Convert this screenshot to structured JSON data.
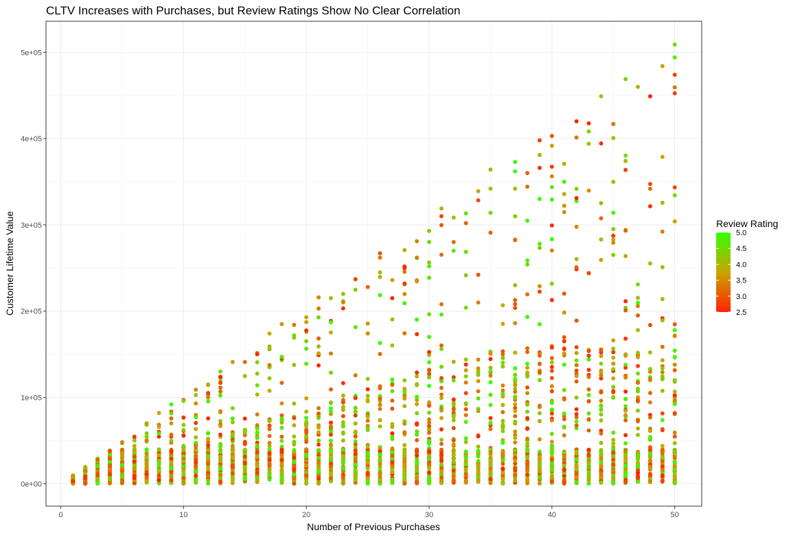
{
  "chart_data": {
    "type": "scatter",
    "title": "CLTV Increases with Purchases, but Review Ratings Show No Clear Correlation",
    "xlabel": "Number of Previous Purchases",
    "ylabel": "Customer Lifetime Value",
    "xlim": [
      -1.2,
      52.2
    ],
    "ylim": [
      -26000,
      536000
    ],
    "xticks": [
      0,
      10,
      20,
      30,
      40,
      50
    ],
    "xtick_labels": [
      "0",
      "10",
      "20",
      "30",
      "40",
      "50"
    ],
    "yticks": [
      0,
      100000,
      200000,
      300000,
      400000,
      500000
    ],
    "ytick_labels": [
      "0e+00",
      "1e+05",
      "2e+05",
      "3e+05",
      "4e+05",
      "5e+05"
    ],
    "grid": true,
    "color_scale": {
      "title": "Review Rating",
      "min": 2.5,
      "max": 5.0,
      "low_color": "#ff2200",
      "mid_color": "#c9a400",
      "high_color": "#33ff00",
      "ticks": [
        5.0,
        4.5,
        4.0,
        3.5,
        3.0,
        2.5
      ],
      "tick_labels": [
        "5.0",
        "4.5",
        "4.0",
        "3.5",
        "3.0",
        "2.5"
      ],
      "legend_position": "right"
    },
    "points_description": "approximately 60-80 customers at each purchase count from 1 to 50; CLTV ranges from 0 up to about 10000 times the purchase count, with most points concentrated below 50000",
    "points": [
      {
        "x": 1,
        "y": 9000,
        "r": 3.6
      },
      {
        "x": 1,
        "y": 3000,
        "r": 2.7
      },
      {
        "x": 2,
        "y": 19000,
        "r": 4.1
      },
      {
        "x": 3,
        "y": 28000,
        "r": 3.2
      },
      {
        "x": 4,
        "y": 38000,
        "r": 2.9
      },
      {
        "x": 5,
        "y": 48000,
        "r": 3.4
      },
      {
        "x": 6,
        "y": 50000,
        "r": 4.4
      },
      {
        "x": 7,
        "y": 70000,
        "r": 3.6
      },
      {
        "x": 8,
        "y": 82000,
        "r": 3.8
      },
      {
        "x": 9,
        "y": 92000,
        "r": 4.9
      },
      {
        "x": 10,
        "y": 96000,
        "r": 4.2
      },
      {
        "x": 11,
        "y": 109000,
        "r": 3.5
      },
      {
        "x": 12,
        "y": 115000,
        "r": 3.7
      },
      {
        "x": 13,
        "y": 130000,
        "r": 4.3
      },
      {
        "x": 14,
        "y": 141000,
        "r": 3.6
      },
      {
        "x": 15,
        "y": 141000,
        "r": 3.2
      },
      {
        "x": 16,
        "y": 150000,
        "r": 2.6
      },
      {
        "x": 17,
        "y": 174000,
        "r": 3.9
      },
      {
        "x": 18,
        "y": 185000,
        "r": 3.6
      },
      {
        "x": 19,
        "y": 184000,
        "r": 3.3
      },
      {
        "x": 20,
        "y": 193000,
        "r": 3.7
      },
      {
        "x": 21,
        "y": 216000,
        "r": 3.4
      },
      {
        "x": 22,
        "y": 215000,
        "r": 4.0
      },
      {
        "x": 22,
        "y": 187000,
        "r": 4.9
      },
      {
        "x": 23,
        "y": 220000,
        "r": 4.1
      },
      {
        "x": 24,
        "y": 237000,
        "r": 2.8
      },
      {
        "x": 25,
        "y": 228000,
        "r": 3.1
      },
      {
        "x": 26,
        "y": 267000,
        "r": 3.0
      },
      {
        "x": 26,
        "y": 262000,
        "r": 3.3
      },
      {
        "x": 27,
        "y": 236000,
        "r": 3.7
      },
      {
        "x": 28,
        "y": 250000,
        "r": 2.6
      },
      {
        "x": 28,
        "y": 232000,
        "r": 2.7
      },
      {
        "x": 29,
        "y": 281000,
        "r": 3.4
      },
      {
        "x": 30,
        "y": 293000,
        "r": 4.2
      },
      {
        "x": 30,
        "y": 252000,
        "r": 4.8
      },
      {
        "x": 31,
        "y": 319000,
        "r": 4.0
      },
      {
        "x": 31,
        "y": 310000,
        "r": 2.9
      },
      {
        "x": 32,
        "y": 280000,
        "r": 3.2
      },
      {
        "x": 32,
        "y": 270000,
        "r": 4.7
      },
      {
        "x": 33,
        "y": 302000,
        "r": 3.1
      },
      {
        "x": 34,
        "y": 339000,
        "r": 3.8
      },
      {
        "x": 35,
        "y": 364000,
        "r": 4.1
      },
      {
        "x": 35,
        "y": 342000,
        "r": 4.3
      },
      {
        "x": 37,
        "y": 373000,
        "r": 4.9
      },
      {
        "x": 37,
        "y": 342000,
        "r": 4.0
      },
      {
        "x": 38,
        "y": 360000,
        "r": 3.1
      },
      {
        "x": 39,
        "y": 398000,
        "r": 2.8
      },
      {
        "x": 39,
        "y": 366000,
        "r": 2.6
      },
      {
        "x": 40,
        "y": 403000,
        "r": 3.0
      },
      {
        "x": 41,
        "y": 350000,
        "r": 4.8
      },
      {
        "x": 42,
        "y": 420000,
        "r": 2.5
      },
      {
        "x": 42,
        "y": 331000,
        "r": 2.5
      },
      {
        "x": 43,
        "y": 394000,
        "r": 4.1
      },
      {
        "x": 44,
        "y": 449000,
        "r": 4.2
      },
      {
        "x": 45,
        "y": 417000,
        "r": 3.3
      },
      {
        "x": 45,
        "y": 314000,
        "r": 4.9
      },
      {
        "x": 46,
        "y": 469000,
        "r": 4.4
      },
      {
        "x": 47,
        "y": 460000,
        "r": 3.9
      },
      {
        "x": 48,
        "y": 449000,
        "r": 2.5
      },
      {
        "x": 49,
        "y": 484000,
        "r": 3.7
      },
      {
        "x": 50,
        "y": 509000,
        "r": 4.5
      },
      {
        "x": 50,
        "y": 494000,
        "r": 4.8
      },
      {
        "x": 50,
        "y": 474000,
        "r": 2.8
      }
    ]
  }
}
